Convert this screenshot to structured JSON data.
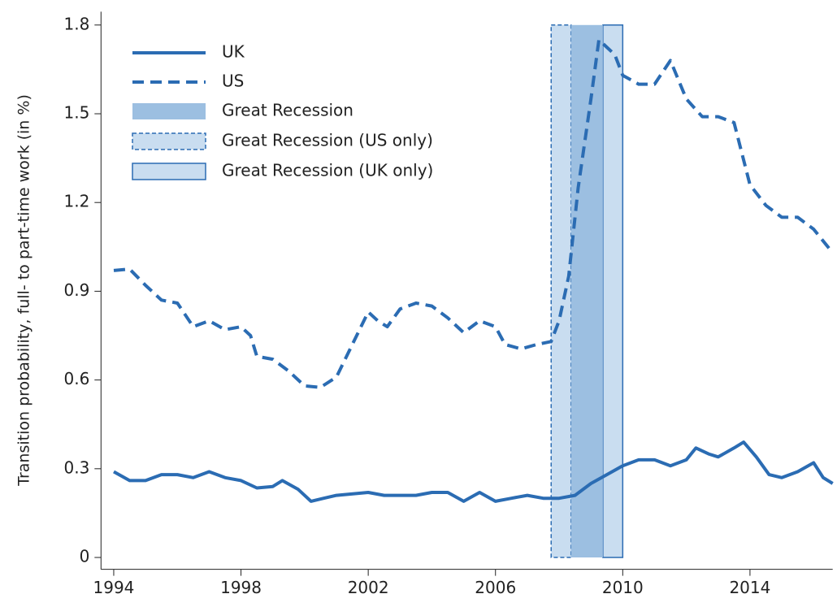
{
  "chart_data": {
    "type": "line",
    "y_label": "Transition probability, full- to part-time work (in %)",
    "xlim": [
      1993.6,
      2016.6
    ],
    "xticks": [
      1994,
      1998,
      2002,
      2006,
      2010,
      2014
    ],
    "ylim": [
      -0.04,
      1.845
    ],
    "yticks": [
      0,
      0.3,
      0.6,
      0.9,
      1.2,
      1.5,
      1.8
    ],
    "legend": "upper left",
    "bands": [
      {
        "name": "Great Recession",
        "start": 2008.375,
        "end": 2009.375,
        "color": "#9cbfe1",
        "border": "none"
      },
      {
        "name": "Great Recession (US only)",
        "start": 2007.75,
        "end": 2008.375,
        "color": "#c9ddf0",
        "border": "dashed"
      },
      {
        "name": "Great Recession (UK only)",
        "start": 2009.375,
        "end": 2010.0,
        "color": "#c9ddf0",
        "border": "solid"
      }
    ],
    "series": [
      {
        "name": "UK",
        "color": "#2b6cb3",
        "dash": "solid",
        "x": [
          1994,
          1994.5,
          1995,
          1995.5,
          1996,
          1996.5,
          1997,
          1997.5,
          1998,
          1998.5,
          1999,
          1999.3,
          1999.8,
          2000.2,
          2000.6,
          2001,
          2002,
          2002.5,
          2003,
          2003.5,
          2004,
          2004.5,
          2005,
          2005.5,
          2006,
          2006.5,
          2007,
          2007.5,
          2008,
          2008.5,
          2009,
          2009.5,
          2010,
          2010.5,
          2011,
          2011.5,
          2012,
          2012.3,
          2012.7,
          2013,
          2013.5,
          2013.8,
          2014.2,
          2014.6,
          2015,
          2015.5,
          2016,
          2016.3,
          2016.6
        ],
        "values": [
          0.29,
          0.26,
          0.26,
          0.28,
          0.28,
          0.27,
          0.29,
          0.27,
          0.26,
          0.235,
          0.24,
          0.26,
          0.23,
          0.19,
          0.2,
          0.21,
          0.22,
          0.21,
          0.21,
          0.21,
          0.22,
          0.22,
          0.19,
          0.22,
          0.19,
          0.2,
          0.21,
          0.2,
          0.2,
          0.21,
          0.25,
          0.28,
          0.31,
          0.33,
          0.33,
          0.31,
          0.33,
          0.37,
          0.35,
          0.34,
          0.37,
          0.39,
          0.34,
          0.28,
          0.27,
          0.29,
          0.32,
          0.27,
          0.25
        ]
      },
      {
        "name": "US",
        "color": "#2b6cb3",
        "dash": "dashed",
        "x": [
          1994,
          1994.5,
          1995,
          1995.5,
          1996,
          1996.5,
          1997,
          1997.5,
          1998,
          1998.3,
          1998.5,
          1999,
          1999.5,
          2000,
          2000.5,
          2001,
          2001.5,
          2002,
          2002.3,
          2002.6,
          2003,
          2003.5,
          2004,
          2004.5,
          2005,
          2005.5,
          2006,
          2006.3,
          2006.8,
          2007.3,
          2007.75,
          2008,
          2008.3,
          2008.6,
          2009,
          2009.25,
          2009.75,
          2010,
          2010.5,
          2011,
          2011.5,
          2012,
          2012.5,
          2013,
          2013.5,
          2014,
          2014.5,
          2015,
          2015.5,
          2016,
          2016.6
        ],
        "values": [
          0.97,
          0.975,
          0.92,
          0.87,
          0.86,
          0.78,
          0.8,
          0.77,
          0.78,
          0.75,
          0.68,
          0.67,
          0.63,
          0.58,
          0.575,
          0.61,
          0.72,
          0.83,
          0.8,
          0.78,
          0.84,
          0.86,
          0.85,
          0.81,
          0.76,
          0.8,
          0.78,
          0.72,
          0.705,
          0.72,
          0.73,
          0.8,
          0.95,
          1.25,
          1.55,
          1.75,
          1.7,
          1.63,
          1.6,
          1.6,
          1.68,
          1.55,
          1.49,
          1.49,
          1.47,
          1.26,
          1.19,
          1.15,
          1.15,
          1.11,
          1.03
        ]
      }
    ]
  }
}
